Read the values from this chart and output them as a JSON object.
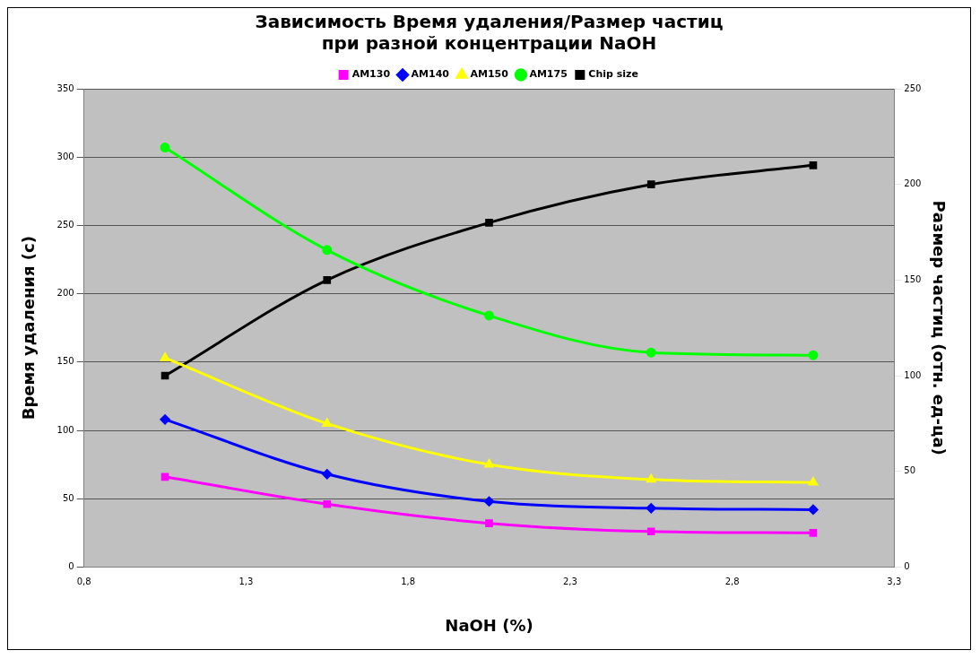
{
  "chart_data": {
    "type": "line",
    "title": "Зависимость Время удаления/Размер частиц\nпри разной концентрации NaOH",
    "xlabel": "NaOH (%)",
    "ylabel": "Время удаления (с)",
    "y2label": "Размер частиц (отн. ед-ца)",
    "x": [
      1.05,
      1.55,
      2.05,
      2.55,
      3.05
    ],
    "series": [
      {
        "name": "AM130",
        "color": "#ff00ff",
        "marker": "square",
        "values": [
          66,
          46,
          32,
          26,
          25
        ]
      },
      {
        "name": "AM140",
        "color": "#0000ff",
        "marker": "diamond",
        "values": [
          108,
          68,
          48,
          43,
          42
        ]
      },
      {
        "name": "AM150",
        "color": "#ffff00",
        "marker": "triangle",
        "values": [
          153,
          105,
          75,
          64,
          62
        ]
      },
      {
        "name": "AM175",
        "color": "#00ff00",
        "marker": "circle",
        "values": [
          307,
          232,
          184,
          157,
          155
        ]
      },
      {
        "name": "Chip size",
        "color": "#000000",
        "marker": "square",
        "axis": "y2",
        "values": [
          100,
          150,
          180,
          200,
          210
        ]
      }
    ],
    "xlim": [
      0.8,
      3.3
    ],
    "xticks": [
      {
        "value": 0.8,
        "label": "0,8"
      },
      {
        "value": 1.3,
        "label": "1,3"
      },
      {
        "value": 1.8,
        "label": "1,8"
      },
      {
        "value": 2.3,
        "label": "2,3"
      },
      {
        "value": 2.8,
        "label": "2,8"
      },
      {
        "value": 3.3,
        "label": "3,3"
      }
    ],
    "ylim": [
      0,
      350
    ],
    "yticks": [
      0,
      50,
      100,
      150,
      200,
      250,
      300,
      350
    ],
    "y2lim": [
      0,
      250
    ],
    "y2ticks": [
      0,
      50,
      100,
      150,
      200,
      250
    ],
    "grid": "y",
    "legend": "top"
  }
}
